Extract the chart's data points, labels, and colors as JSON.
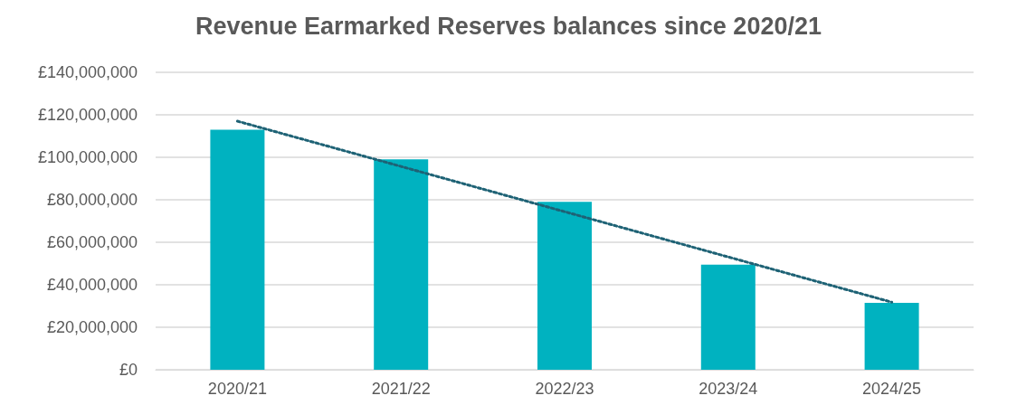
{
  "chart_data": {
    "type": "bar",
    "title": "Revenue Earmarked Reserves balances since 2020/21",
    "categories": [
      "2020/21",
      "2021/22",
      "2022/23",
      "2023/24",
      "2024/25"
    ],
    "series": [
      {
        "color": "#00b2c0",
        "values": [
          113000000,
          99000000,
          79000000,
          49500000,
          31500000
        ]
      },
      {
        "type": "line",
        "color": "#1e6275",
        "line_style": "dotted",
        "marker": "none",
        "values": [
          117000000,
          95700000,
          74400000,
          53100000,
          31800000
        ]
      }
    ],
    "ylim": [
      0,
      140000000
    ],
    "yticks": [
      {
        "value": 0,
        "label": "£0"
      },
      {
        "value": 20000000,
        "label": "£20,000,000"
      },
      {
        "value": 40000000,
        "label": "£40,000,000"
      },
      {
        "value": 60000000,
        "label": "£60,000,000"
      },
      {
        "value": 80000000,
        "label": "£80,000,000"
      },
      {
        "value": 100000000,
        "label": "£100,000,000"
      },
      {
        "value": 120000000,
        "label": "£120,000,000"
      },
      {
        "value": 140000000,
        "label": "£140,000,000"
      }
    ],
    "grid": "y"
  }
}
